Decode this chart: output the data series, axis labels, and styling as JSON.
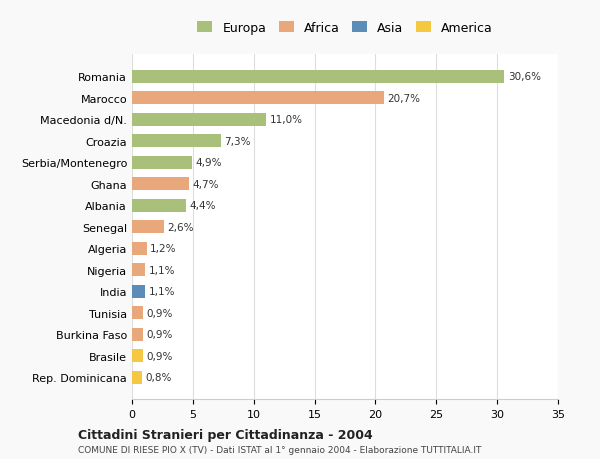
{
  "categories": [
    "Romania",
    "Marocco",
    "Macedonia d/N.",
    "Croazia",
    "Serbia/Montenegro",
    "Ghana",
    "Albania",
    "Senegal",
    "Algeria",
    "Nigeria",
    "India",
    "Tunisia",
    "Burkina Faso",
    "Brasile",
    "Rep. Dominicana"
  ],
  "values": [
    30.6,
    20.7,
    11.0,
    7.3,
    4.9,
    4.7,
    4.4,
    2.6,
    1.2,
    1.1,
    1.1,
    0.9,
    0.9,
    0.9,
    0.8
  ],
  "labels": [
    "30,6%",
    "20,7%",
    "11,0%",
    "7,3%",
    "4,9%",
    "4,7%",
    "4,4%",
    "2,6%",
    "1,2%",
    "1,1%",
    "1,1%",
    "0,9%",
    "0,9%",
    "0,9%",
    "0,8%"
  ],
  "continent": [
    "Europa",
    "Africa",
    "Europa",
    "Europa",
    "Europa",
    "Africa",
    "Europa",
    "Africa",
    "Africa",
    "Africa",
    "Asia",
    "Africa",
    "Africa",
    "America",
    "America"
  ],
  "colors": {
    "Europa": "#a8c07a",
    "Africa": "#e8a87c",
    "Asia": "#5b8db8",
    "America": "#f5c842"
  },
  "legend_order": [
    "Europa",
    "Africa",
    "Asia",
    "America"
  ],
  "legend_colors": {
    "Europa": "#a8c07a",
    "Africa": "#e8a87c",
    "Asia": "#5b8db8",
    "America": "#f5c842"
  },
  "title1": "Cittadini Stranieri per Cittadinanza - 2004",
  "title2": "COMUNE DI RIESE PIO X (TV) - Dati ISTAT al 1° gennaio 2004 - Elaborazione TUTTITALIA.IT",
  "xlim": [
    0,
    35
  ],
  "xticks": [
    0,
    5,
    10,
    15,
    20,
    25,
    30,
    35
  ],
  "background_color": "#f9f9f9",
  "bar_background": "#ffffff",
  "grid_color": "#dddddd"
}
